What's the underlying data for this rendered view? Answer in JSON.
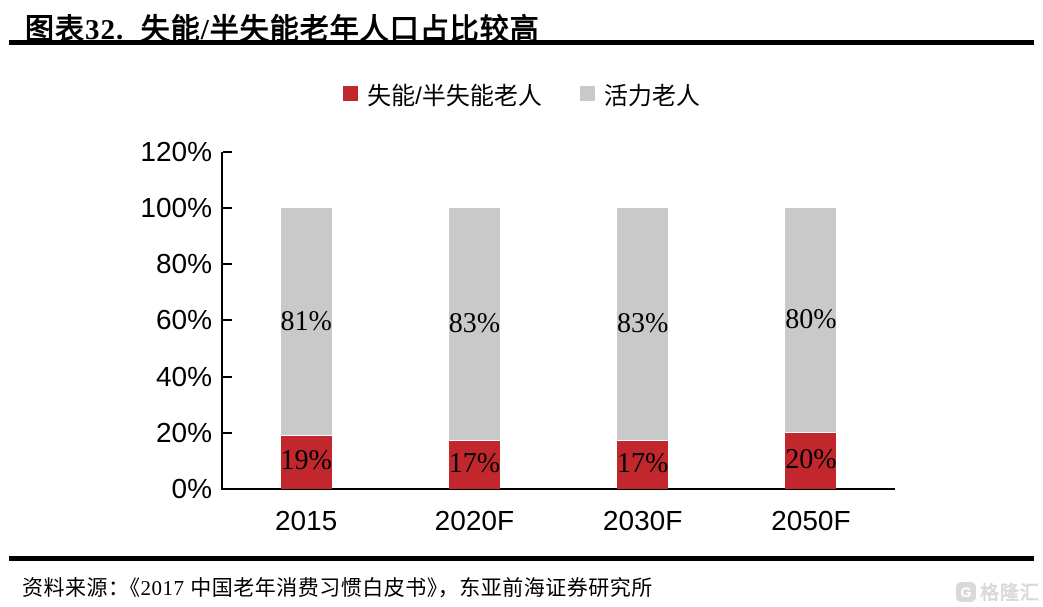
{
  "header": {
    "title": "图表32.  失能/半失能老年人口占比较高"
  },
  "chart_data": {
    "type": "bar",
    "stacked": true,
    "title": "失能/半失能老年人口占比较高",
    "categories": [
      "2015",
      "2020F",
      "2030F",
      "2050F"
    ],
    "series": [
      {
        "name": "失能/半失能老人",
        "color": "#c2272e",
        "values": [
          19,
          17,
          17,
          20
        ],
        "labels": [
          "19%",
          "17%",
          "17%",
          "20%"
        ]
      },
      {
        "name": "活力老人",
        "color": "#c9c9c9",
        "values": [
          81,
          83,
          83,
          80
        ],
        "labels": [
          "81%",
          "83%",
          "83%",
          "80%"
        ]
      }
    ],
    "ylim": [
      0,
      120
    ],
    "ytick_step": 20,
    "ytick_labels": [
      "0%",
      "20%",
      "40%",
      "60%",
      "80%",
      "100%",
      "120%"
    ],
    "grid": false,
    "legend_position": "top",
    "xlabel": "",
    "ylabel": ""
  },
  "footer": {
    "source": "资料来源：《2017 中国老年消费习惯白皮书》，东亚前海证券研究所"
  },
  "watermark": {
    "logo_letter": "G",
    "text": "格隆汇"
  }
}
